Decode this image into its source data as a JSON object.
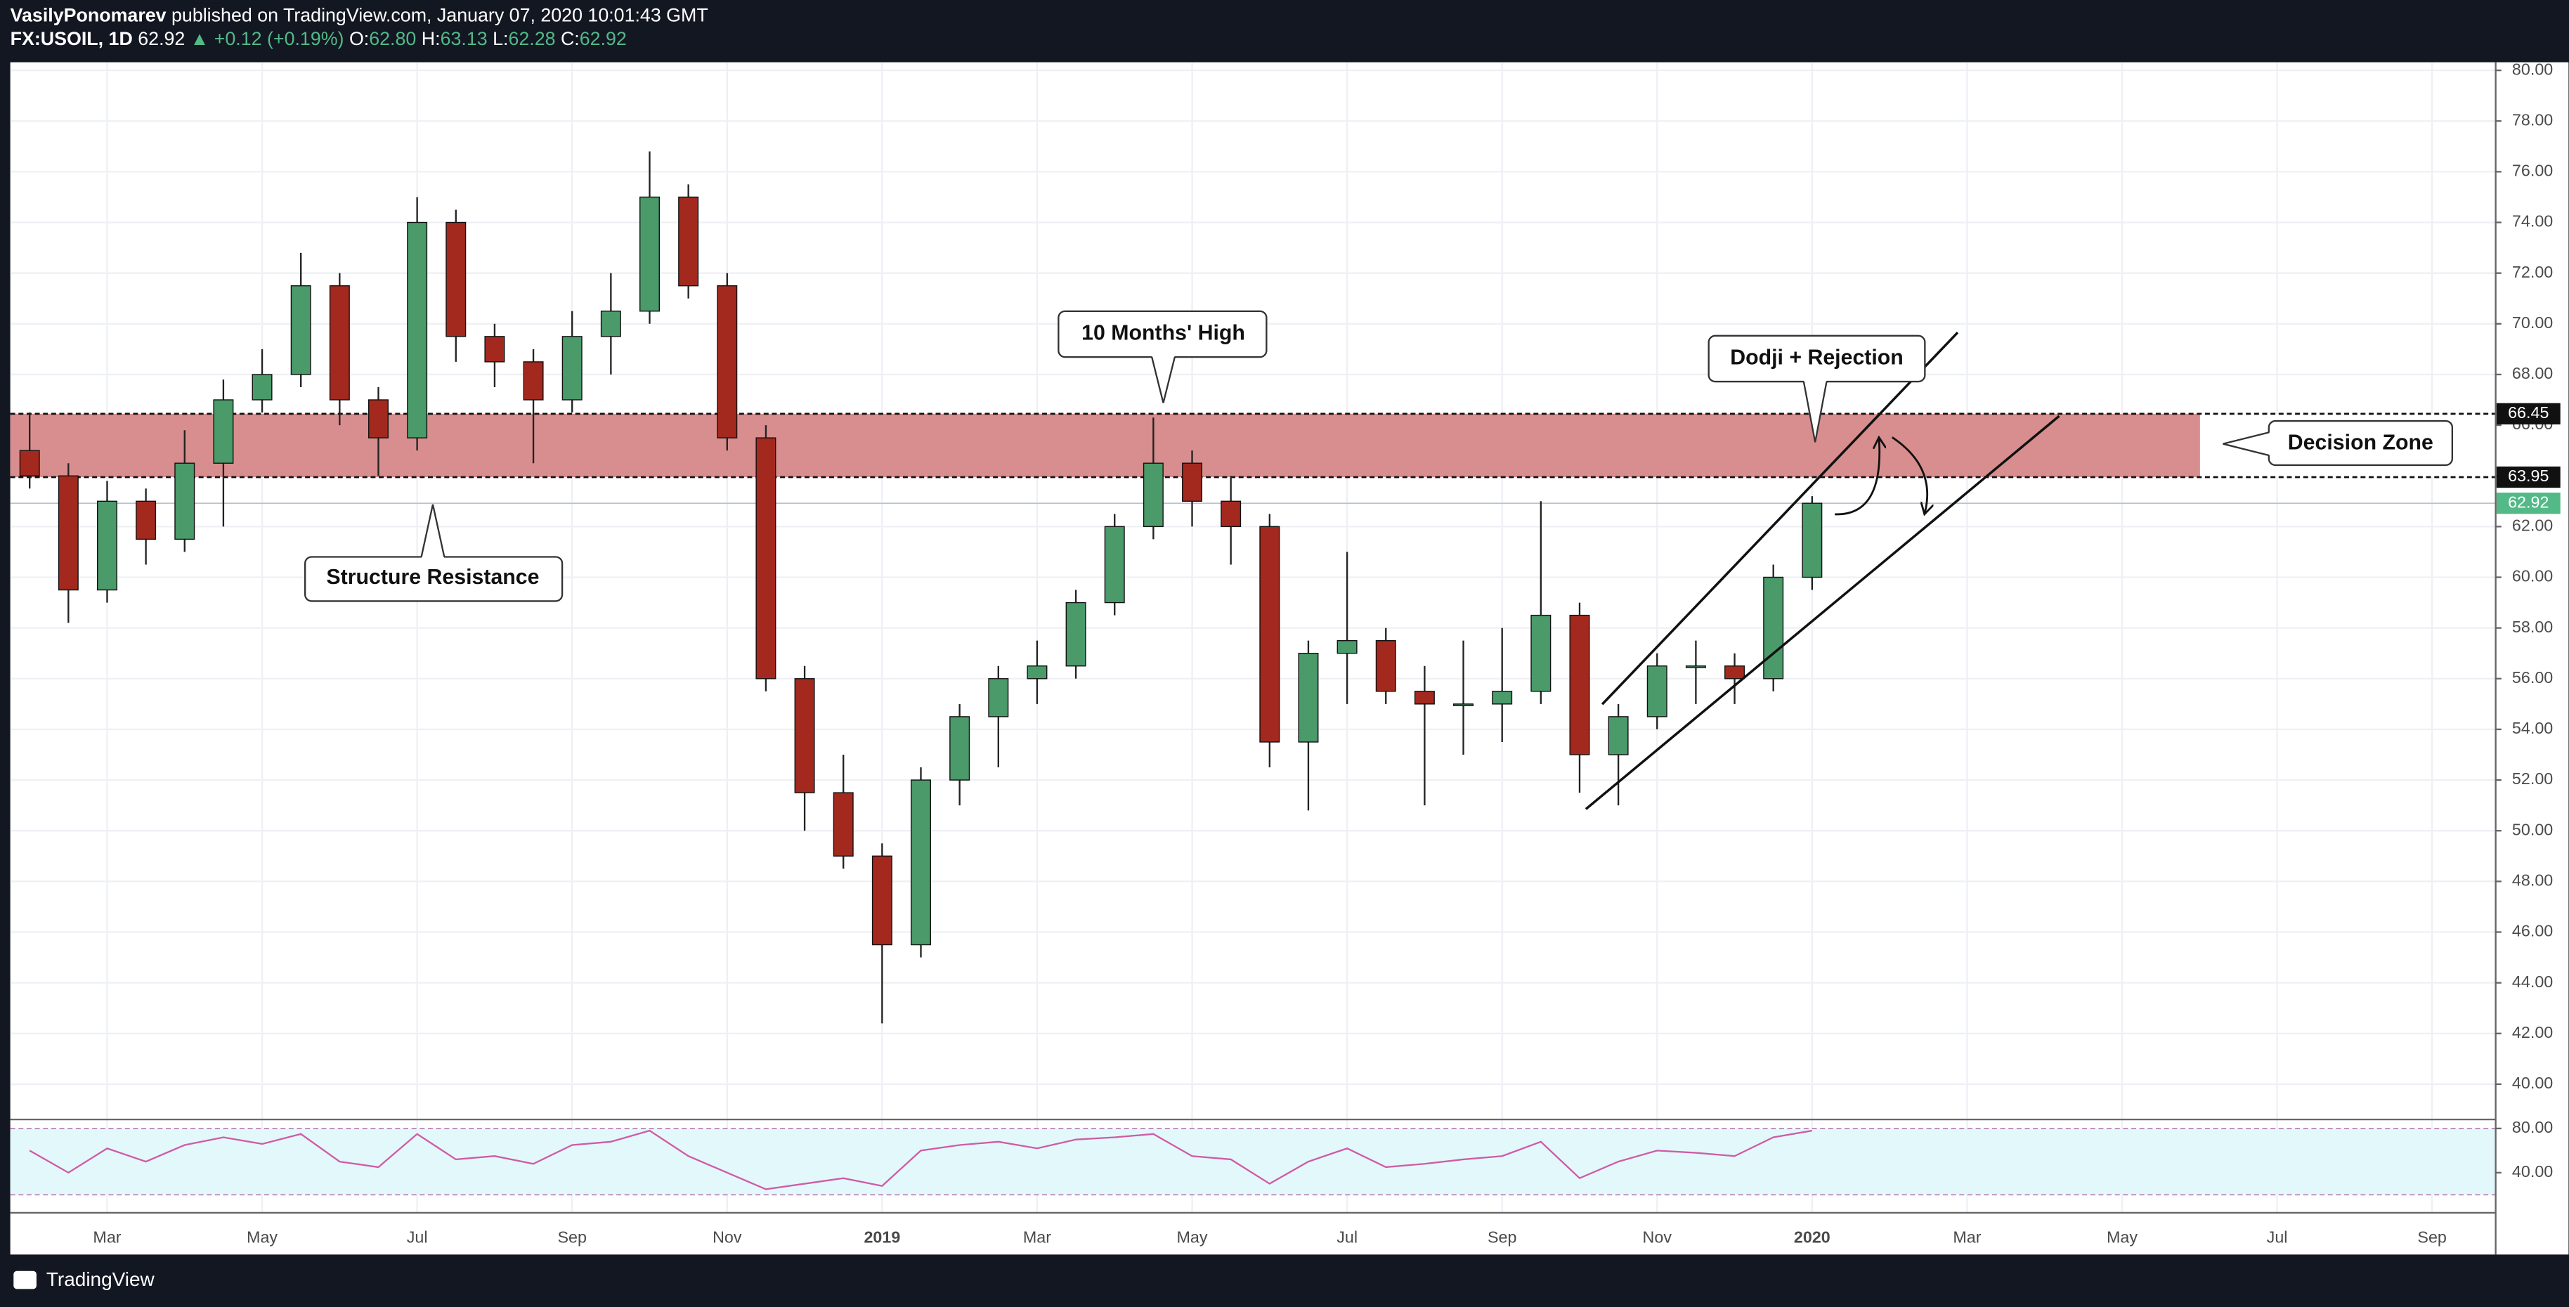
{
  "header": {
    "author": "VasilyPonomarev",
    "published": "published on TradingView.com, January 07, 2020 10:01:43 GMT",
    "symbol": "FX:USOIL, 1D",
    "last": "62.92",
    "change": "▲ +0.12 (+0.19%)",
    "ohlc": [
      {
        "label": "O:",
        "value": "62.80"
      },
      {
        "label": "H:",
        "value": "63.13"
      },
      {
        "label": "L:",
        "value": "62.28"
      },
      {
        "label": "C:",
        "value": "62.92"
      }
    ]
  },
  "footer": {
    "brand": "TradingView"
  },
  "chart_data": {
    "type": "candlestick",
    "x": [
      1,
      1.5,
      2,
      2.5,
      3,
      3.5,
      4,
      4.5,
      5,
      5.5,
      6,
      6.5,
      7,
      7.5,
      8,
      8.5,
      9,
      9.5,
      10,
      10.5,
      11,
      11.5,
      12,
      12.5,
      13,
      13.5,
      14,
      14.5,
      15,
      15.5,
      16,
      16.5,
      17,
      17.5,
      18,
      18.5,
      19,
      19.5,
      20,
      20.5,
      21,
      21.5,
      22,
      22.5,
      23,
      23.5,
      24
    ],
    "open": [
      65,
      64,
      59.5,
      63,
      61.5,
      64.5,
      67,
      68,
      71.5,
      67,
      65.5,
      74,
      69.5,
      68.5,
      67,
      69.5,
      70.5,
      75,
      71.5,
      65.5,
      56,
      51.5,
      49,
      45.5,
      52,
      54.5,
      56,
      56.5,
      59,
      62,
      64.5,
      63,
      62,
      53.5,
      57,
      57.5,
      55.5,
      55,
      55,
      55.5,
      58.5,
      53,
      54.5,
      56.5,
      56.5,
      56,
      60
    ],
    "high": [
      66.5,
      64.5,
      63.8,
      63.5,
      65.8,
      67.8,
      69,
      72.8,
      72,
      67.5,
      75,
      74.5,
      70,
      69,
      70.5,
      72,
      76.8,
      75.5,
      72,
      66,
      56.5,
      53,
      49.5,
      52.5,
      55,
      56.5,
      57.5,
      59.5,
      62.5,
      66.3,
      65,
      64,
      62.5,
      57.5,
      61,
      58,
      56.5,
      57.5,
      58,
      63,
      59,
      55,
      57,
      57.5,
      57,
      60.5,
      63.2
    ],
    "low": [
      63.5,
      58.2,
      59,
      60.5,
      61,
      62,
      66.5,
      67.5,
      66,
      64,
      65,
      68.5,
      67.5,
      64.5,
      66.5,
      68,
      70,
      71,
      65,
      55.5,
      50,
      48.5,
      42.4,
      45,
      51,
      52.5,
      55,
      56,
      58.5,
      61.5,
      62,
      60.5,
      52.5,
      50.8,
      55,
      55,
      51,
      53,
      53.5,
      55,
      51.5,
      51,
      54,
      55,
      55,
      55.5,
      59.5
    ],
    "close": [
      64,
      59.5,
      63,
      61.5,
      64.5,
      67,
      68,
      71.5,
      67,
      65.5,
      74,
      69.5,
      68.5,
      67,
      69.5,
      70.5,
      75,
      71.5,
      65.5,
      56,
      51.5,
      49,
      45.5,
      52,
      54.5,
      56,
      56.5,
      59,
      62,
      64.5,
      63,
      62,
      53.5,
      57,
      57.5,
      55.5,
      55,
      55,
      55.5,
      58.5,
      53,
      54.5,
      56.5,
      56.5,
      56,
      60,
      62.92
    ],
    "up_color": "#4a9a6a",
    "down_color": "#a3291f",
    "xlim": [
      0.75,
      32.81
    ],
    "xticks": [
      {
        "value": 2,
        "label": "Mar"
      },
      {
        "value": 4,
        "label": "May"
      },
      {
        "value": 6,
        "label": "Jul"
      },
      {
        "value": 8,
        "label": "Sep"
      },
      {
        "value": 10,
        "label": "Nov"
      },
      {
        "value": 12,
        "label": "2019"
      },
      {
        "value": 14,
        "label": "Mar"
      },
      {
        "value": 16,
        "label": "May"
      },
      {
        "value": 18,
        "label": "Jul"
      },
      {
        "value": 20,
        "label": "Sep"
      },
      {
        "value": 22,
        "label": "Nov"
      },
      {
        "value": 24,
        "label": "2020"
      },
      {
        "value": 26,
        "label": "Mar"
      },
      {
        "value": 28,
        "label": "May"
      },
      {
        "value": 30,
        "label": "Jul"
      },
      {
        "value": 32,
        "label": "Sep"
      }
    ],
    "ylim": [
      38.64,
      80.32
    ],
    "yticks": [
      {
        "value": 40,
        "label": "40.00"
      },
      {
        "value": 42,
        "label": "42.00"
      },
      {
        "value": 44,
        "label": "44.00"
      },
      {
        "value": 46,
        "label": "46.00"
      },
      {
        "value": 48,
        "label": "48.00"
      },
      {
        "value": 50,
        "label": "50.00"
      },
      {
        "value": 52,
        "label": "52.00"
      },
      {
        "value": 54,
        "label": "54.00"
      },
      {
        "value": 56,
        "label": "56.00"
      },
      {
        "value": 58,
        "label": "58.00"
      },
      {
        "value": 60,
        "label": "60.00"
      },
      {
        "value": 62,
        "label": "62.00"
      },
      {
        "value": 64,
        "label": "64.00"
      },
      {
        "value": 66,
        "label": "66.00"
      },
      {
        "value": 68,
        "label": "68.00"
      },
      {
        "value": 70,
        "label": "70.00"
      },
      {
        "value": 72,
        "label": "72.00"
      },
      {
        "value": 74,
        "label": "74.00"
      },
      {
        "value": 76,
        "label": "76.00"
      },
      {
        "value": 78,
        "label": "78.00"
      },
      {
        "value": 80,
        "label": "80.00"
      }
    ],
    "grid": true,
    "zone": [
      63.95,
      66.45
    ],
    "zone_color": "#d88e8e",
    "last_price": 62.92,
    "last_color": "#53b987",
    "annotations": [
      "10 Months' High",
      "Dodji + Rejection",
      "Structure Resistance",
      "Decision Zone"
    ],
    "rsi": {
      "values": [
        60,
        40,
        62,
        50,
        65,
        72,
        66,
        75,
        50,
        45,
        75,
        52,
        55,
        48,
        65,
        68,
        78,
        55,
        40,
        25,
        30,
        35,
        28,
        60,
        65,
        68,
        62,
        70,
        72,
        75,
        55,
        52,
        30,
        50,
        62,
        45,
        48,
        52,
        55,
        68,
        35,
        50,
        60,
        58,
        55,
        72,
        78
      ],
      "color": "#d05ba5",
      "band": [
        20,
        80
      ],
      "band_color": "#e3f8fb",
      "ylim": [
        4.4,
        87.4
      ],
      "yticks": [
        {
          "value": 40,
          "label": "40.00"
        },
        {
          "value": 80,
          "label": "80.00"
        }
      ]
    }
  }
}
